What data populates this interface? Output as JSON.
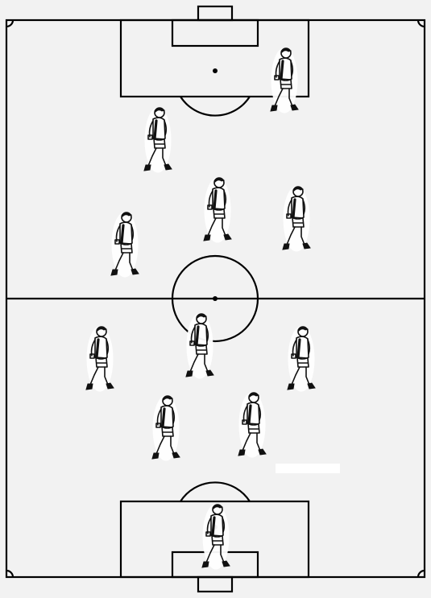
{
  "diagram": {
    "type": "football-formation",
    "pitch_color": "#f2f2f2",
    "line_color": "#000000",
    "players": [
      {
        "id": "p1",
        "kind": "standing-player-icon",
        "facing": "right"
      },
      {
        "id": "p2",
        "kind": "standing-player-icon",
        "facing": "right"
      },
      {
        "id": "p3",
        "kind": "standing-player-icon",
        "facing": "right"
      },
      {
        "id": "p4",
        "kind": "standing-player-icon",
        "facing": "right"
      },
      {
        "id": "p5",
        "kind": "standing-player-icon",
        "facing": "right"
      },
      {
        "id": "p6",
        "kind": "standing-player-icon",
        "facing": "right"
      },
      {
        "id": "p7",
        "kind": "standing-player-icon",
        "facing": "right"
      },
      {
        "id": "p8",
        "kind": "standing-player-icon",
        "facing": "right"
      },
      {
        "id": "p9",
        "kind": "standing-player-icon",
        "facing": "right"
      },
      {
        "id": "p10",
        "kind": "standing-player-icon",
        "facing": "right"
      },
      {
        "id": "p11",
        "kind": "standing-player-icon",
        "facing": "right"
      },
      {
        "id": "p12",
        "kind": "standing-player-icon",
        "facing": "right"
      }
    ]
  }
}
